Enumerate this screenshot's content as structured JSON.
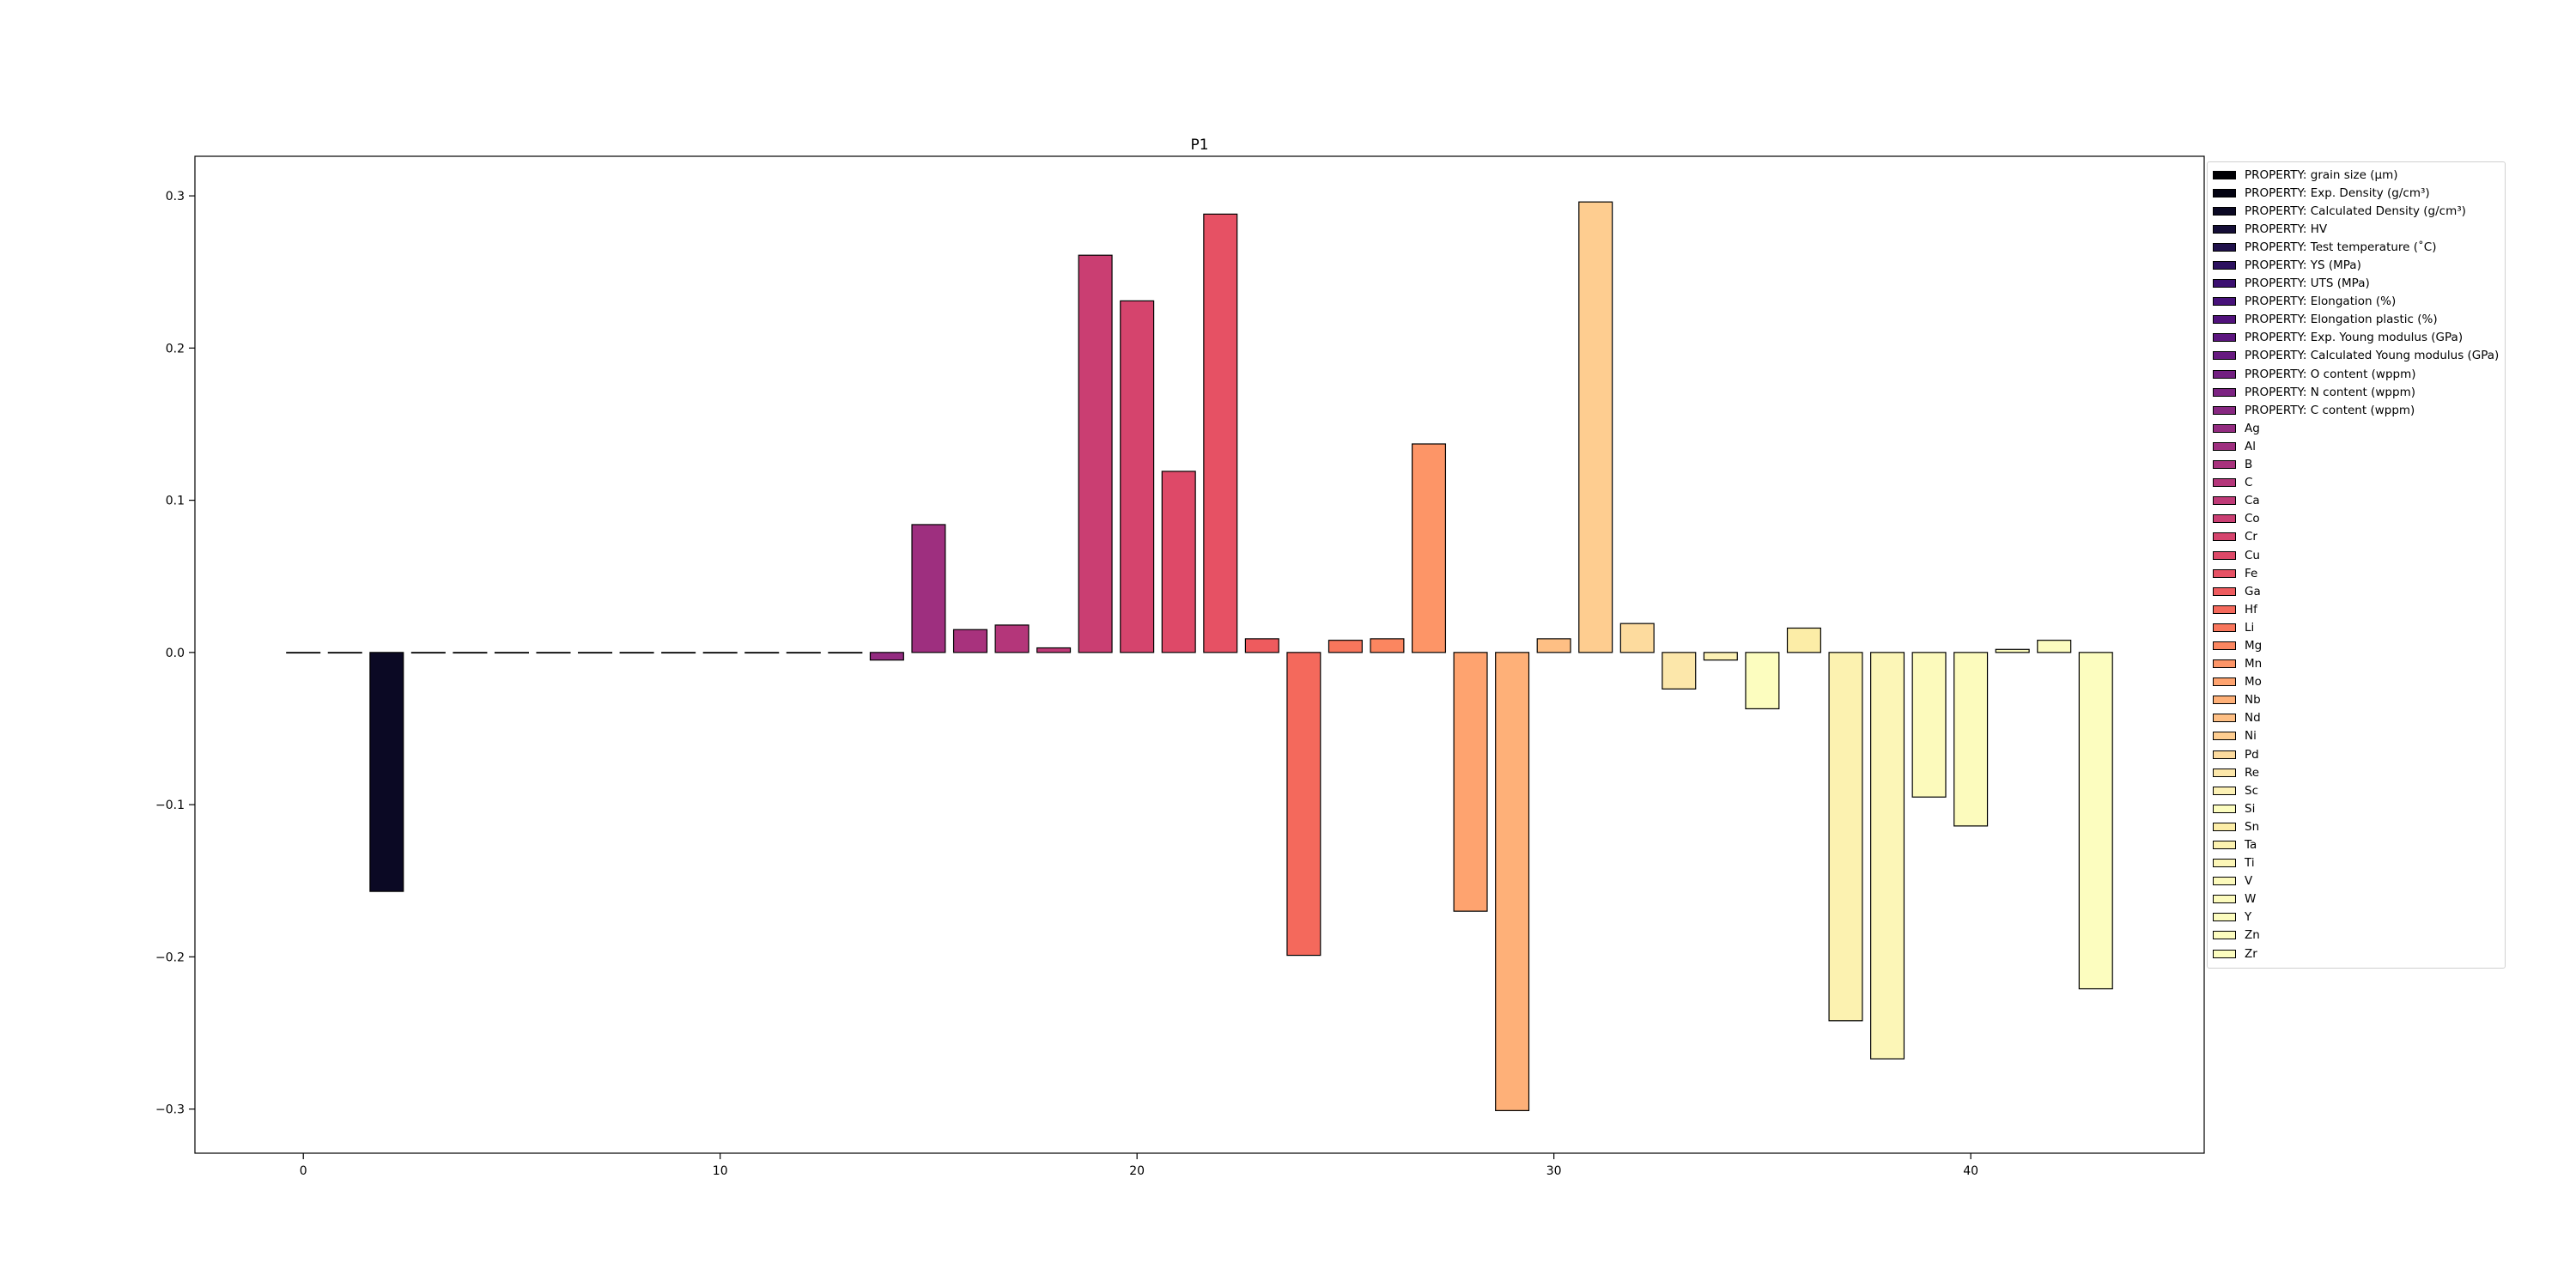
{
  "chart_data": {
    "type": "bar",
    "title": "P1",
    "xlabel": "",
    "ylabel": "",
    "xlim": [
      -2.6,
      45.6
    ],
    "ylim": [
      -0.329,
      0.326
    ],
    "xticks": [
      0,
      10,
      20,
      30,
      40
    ],
    "yticks": [
      -0.3,
      -0.2,
      -0.1,
      0.0,
      0.1,
      0.2,
      0.3
    ],
    "ytick_labels": [
      "−0.3",
      "−0.2",
      "−0.1",
      "0.0",
      "0.1",
      "0.2",
      "0.3"
    ],
    "grid": false,
    "legend_placement": "outside-right",
    "colormap": "magma",
    "categories": [
      "PROPERTY: grain size (μm)",
      "PROPERTY: Exp. Density (g/cm³)",
      "PROPERTY: Calculated Density (g/cm³)",
      "PROPERTY: HV",
      "PROPERTY: Test temperature (˚C)",
      "PROPERTY: YS (MPa)",
      "PROPERTY: UTS (MPa)",
      "PROPERTY: Elongation (%)",
      "PROPERTY: Elongation plastic (%)",
      "PROPERTY: Exp. Young modulus (GPa)",
      "PROPERTY: Calculated Young modulus (GPa)",
      "PROPERTY: O content (wppm)",
      "PROPERTY: N content (wppm)",
      "PROPERTY: C content (wppm)",
      "Ag",
      "Al",
      "B",
      "C",
      "Ca",
      "Co",
      "Cr",
      "Cu",
      "Fe",
      "Ga",
      "Hf",
      "Li",
      "Mg",
      "Mn",
      "Mo",
      "Nb",
      "Nd",
      "Ni",
      "Pd",
      "Re",
      "Sc",
      "Si",
      "Sn",
      "Ta",
      "Ti",
      "V",
      "W",
      "Y",
      "Zn",
      "Zr"
    ],
    "x": [
      0,
      1,
      2,
      3,
      4,
      5,
      6,
      7,
      8,
      9,
      10,
      11,
      12,
      13,
      14,
      15,
      16,
      17,
      18,
      19,
      20,
      21,
      22,
      23,
      24,
      25,
      26,
      27,
      28,
      29,
      30,
      31,
      32,
      33,
      34,
      35,
      36,
      37,
      38,
      39,
      40,
      41,
      42,
      43
    ],
    "values": [
      0.0,
      0.0,
      -0.157,
      0.0,
      0.0,
      0.0,
      0.0,
      0.0,
      0.0,
      0.0,
      0.0,
      0.0,
      0.0,
      0.0,
      -0.005,
      0.084,
      0.015,
      0.018,
      0.003,
      0.261,
      0.231,
      0.119,
      0.288,
      0.009,
      -0.199,
      0.008,
      0.009,
      0.137,
      -0.17,
      -0.301,
      0.009,
      0.296,
      0.019,
      -0.024,
      -0.005,
      -0.037,
      0.016,
      -0.242,
      -0.267,
      -0.095,
      -0.114,
      0.002,
      0.008,
      -0.221
    ],
    "colors": [
      "#000004",
      "#030312",
      "#0b0924",
      "#150e37",
      "#20114b",
      "#2c115f",
      "#3b0f70",
      "#47117a",
      "#51127c",
      "#5c167f",
      "#671a80",
      "#721f81",
      "#7c2382",
      "#872781",
      "#932b80",
      "#9e2f7f",
      "#a8327d",
      "#b4367a",
      "#bf3a77",
      "#ca3e72",
      "#d5446d",
      "#de4968",
      "#e65164",
      "#ee5b5e",
      "#f4695c",
      "#f8765c",
      "#fb8660",
      "#fd9567",
      "#fea36f",
      "#feb078",
      "#febf84",
      "#fecd90",
      "#fddb9e",
      "#fce7aa",
      "#fcf1b5",
      "#fcfdbf",
      "#fceda7",
      "#fcf2b0",
      "#fcf6b7",
      "#fcfabc",
      "#fcfbbd",
      "#fcfcbe",
      "#fcfcbf",
      "#fcfdbf"
    ]
  }
}
